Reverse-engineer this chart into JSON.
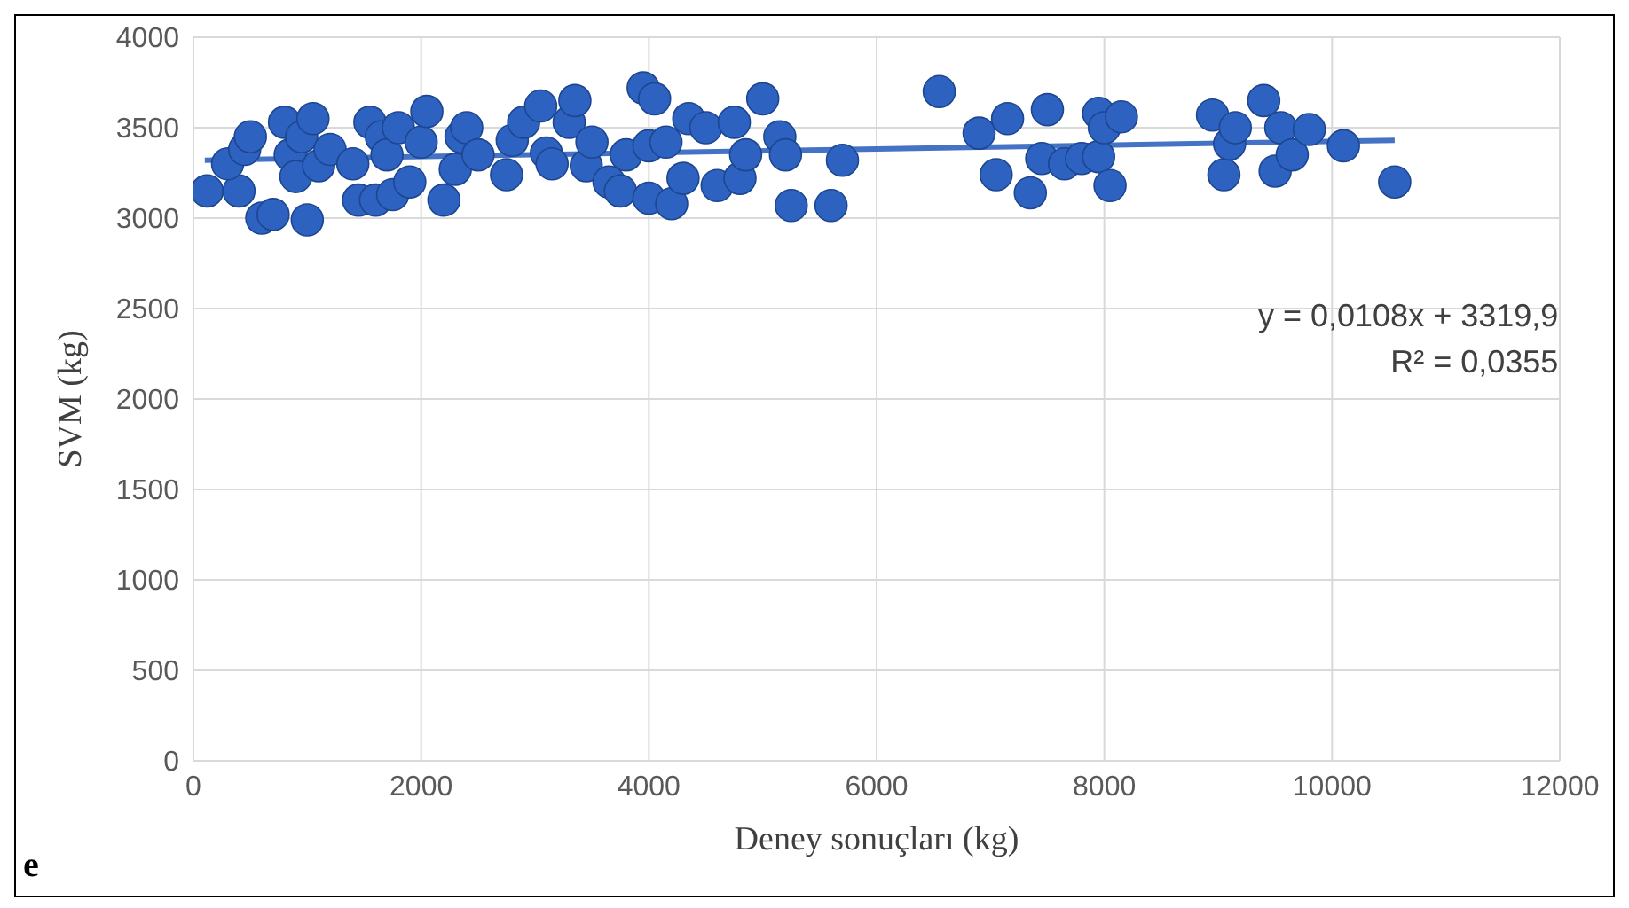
{
  "chart_data": {
    "type": "scatter",
    "xlabel": "Deney sonuçları (kg)",
    "ylabel": "SVM (kg)",
    "xlim": [
      0,
      12000
    ],
    "xticks": [
      0,
      2000,
      4000,
      6000,
      8000,
      10000,
      12000
    ],
    "ylim": [
      0,
      4000
    ],
    "yticks": [
      0,
      500,
      1000,
      1500,
      2000,
      2500,
      3000,
      3500,
      4000
    ],
    "grid": true,
    "marker": "circle",
    "annotations": [
      "y = 0,0108x + 3319,9",
      "R² = 0,0355",
      "e"
    ],
    "series": [
      {
        "color": "#2e62c0",
        "x": [
          120,
          400,
          300,
          450,
          500,
          600,
          700,
          800,
          850,
          900,
          950,
          1000,
          1050,
          1100,
          1200,
          1400,
          1450,
          1550,
          1600,
          1650,
          1700,
          1750,
          1800,
          1900,
          2000,
          2050,
          2200,
          2300,
          2350,
          2400,
          2500,
          2750,
          2800,
          2900,
          3050,
          3100,
          3150,
          3300,
          3350,
          3450,
          3500,
          3650,
          3750,
          3800,
          3950,
          4000,
          4050,
          4000,
          4150,
          4200,
          4300,
          4350,
          4500,
          4600,
          4750,
          4800,
          4850,
          5000,
          5150,
          5200,
          5250,
          5600,
          5700,
          6550,
          6900,
          7050,
          7150,
          7350,
          7450,
          7500,
          7650,
          7800,
          7950,
          7950,
          8000,
          8050,
          8150,
          8950,
          9050,
          9100,
          9150,
          9400,
          9500,
          9550,
          9650,
          9800,
          10100,
          10550
        ],
        "values": [
          3150,
          3150,
          3300,
          3380,
          3450,
          3000,
          3020,
          3530,
          3350,
          3230,
          3450,
          2990,
          3550,
          3290,
          3380,
          3300,
          3100,
          3530,
          3100,
          3450,
          3350,
          3130,
          3500,
          3200,
          3420,
          3590,
          3100,
          3270,
          3450,
          3500,
          3350,
          3240,
          3430,
          3530,
          3620,
          3360,
          3300,
          3530,
          3650,
          3290,
          3420,
          3200,
          3150,
          3350,
          3720,
          3400,
          3660,
          3110,
          3420,
          3080,
          3220,
          3550,
          3500,
          3180,
          3530,
          3220,
          3350,
          3660,
          3450,
          3350,
          3070,
          3070,
          3320,
          3700,
          3470,
          3240,
          3550,
          3140,
          3330,
          3600,
          3300,
          3330,
          3580,
          3340,
          3500,
          3180,
          3560,
          3570,
          3240,
          3410,
          3500,
          3650,
          3260,
          3500,
          3350,
          3490,
          3400,
          3200
        ]
      },
      {
        "type": "line",
        "color": "#4472c4",
        "marker": "none",
        "line_style": "solid",
        "x": [
          100,
          10550
        ],
        "values": [
          3320,
          3430
        ]
      }
    ]
  }
}
